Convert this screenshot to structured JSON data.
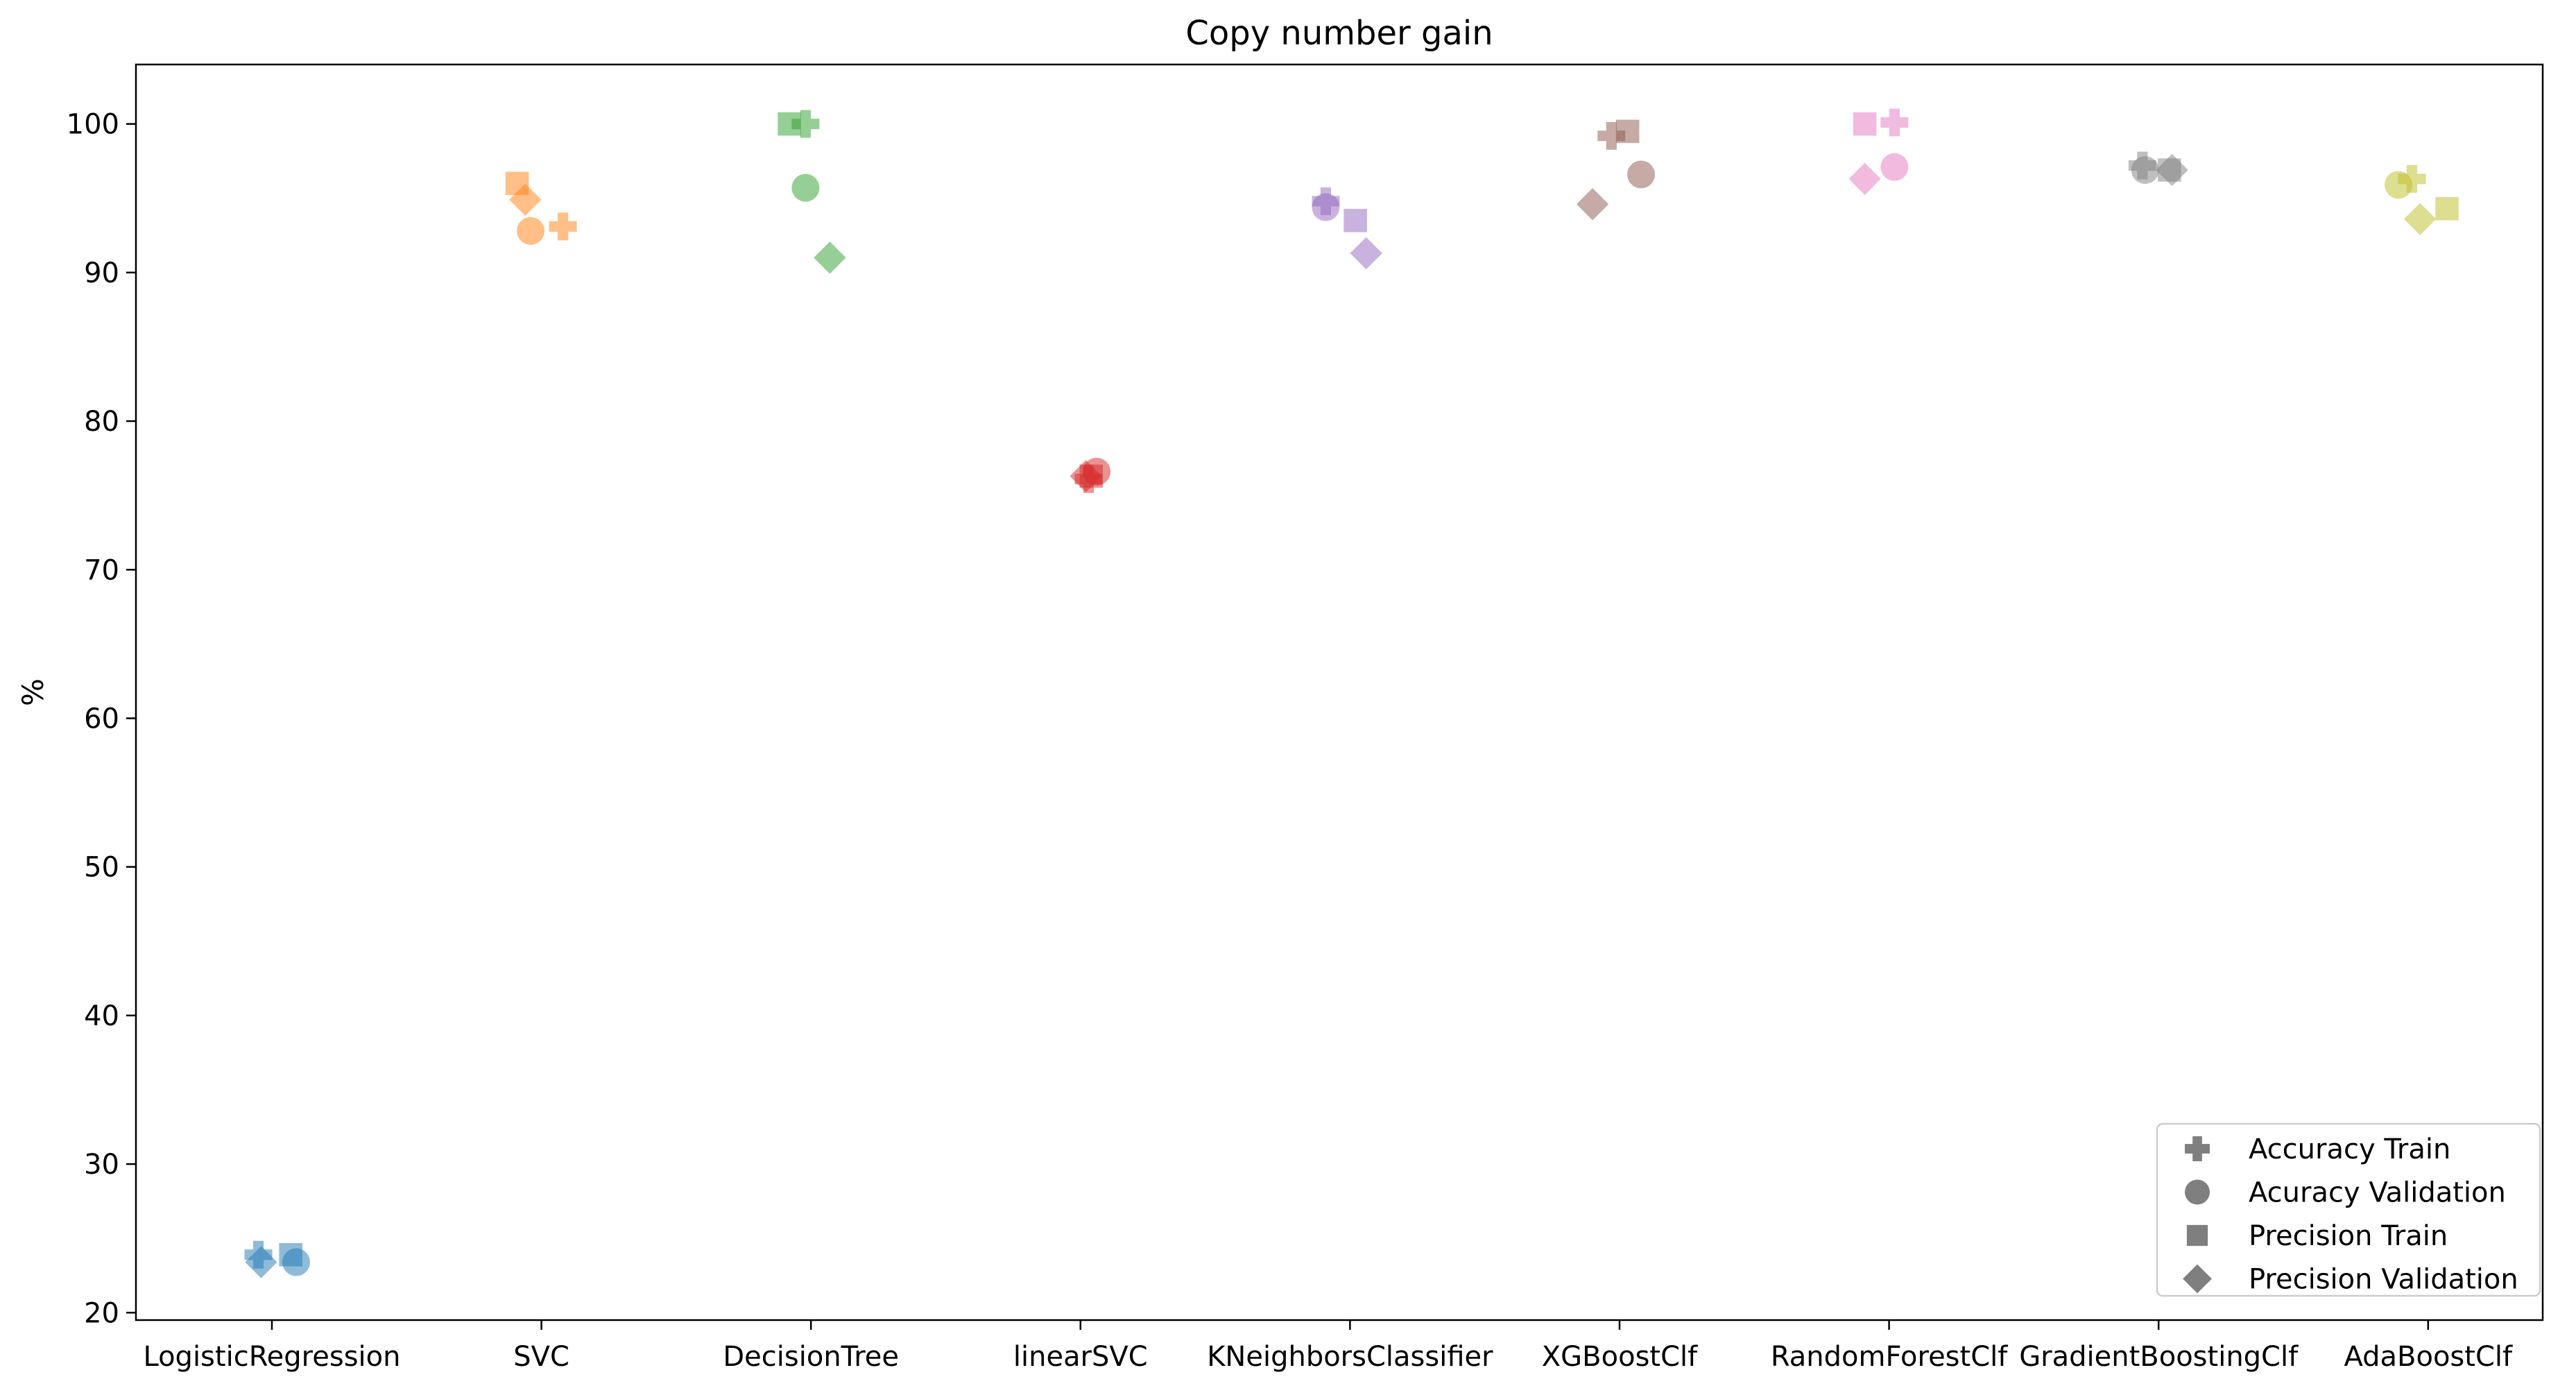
{
  "chart_data": {
    "type": "scatter",
    "title": "Copy number gain",
    "xlabel": "",
    "ylabel": "%",
    "ylim": [
      19.5,
      104
    ],
    "yticks": [
      20,
      30,
      40,
      50,
      60,
      70,
      80,
      90,
      100
    ],
    "categories": [
      "LogisticRegression",
      "SVC",
      "DecisionTree",
      "linearSVC",
      "KNeighborsClassifier",
      "XGBoostClf",
      "RandomForestClf",
      "GradientBoostingClf",
      "AdaBoostClf"
    ],
    "category_colors": [
      "#1f77b4",
      "#ff7f0e",
      "#2ca02c",
      "#d62728",
      "#9467bd",
      "#8c564b",
      "#e377c2",
      "#7f7f7f",
      "#bcbd22"
    ],
    "marker_opacity": 0.5,
    "legend_position": "lower-right",
    "grid": false,
    "series": [
      {
        "name": "Accuracy Train",
        "marker": "plus",
        "x_offset": [
          -0.05,
          0.08,
          -0.02,
          0.03,
          -0.09,
          -0.03,
          0.02,
          -0.06,
          -0.06
        ],
        "values": [
          23.9,
          93.1,
          100.0,
          76.1,
          94.8,
          99.2,
          100.1,
          97.2,
          96.3
        ]
      },
      {
        "name": "Acuracy Validation",
        "marker": "circle",
        "x_offset": [
          0.09,
          -0.04,
          -0.02,
          0.06,
          -0.09,
          0.08,
          0.02,
          -0.05,
          -0.11
        ],
        "values": [
          23.4,
          92.8,
          95.7,
          76.6,
          94.4,
          96.6,
          97.1,
          96.9,
          95.9
        ]
      },
      {
        "name": "Precision Train",
        "marker": "square",
        "x_offset": [
          0.07,
          -0.09,
          -0.08,
          0.04,
          0.02,
          0.03,
          -0.09,
          0.04,
          0.07
        ],
        "values": [
          23.9,
          96.0,
          100.0,
          76.3,
          93.5,
          99.5,
          100.0,
          96.9,
          94.3
        ]
      },
      {
        "name": "Precision Validation",
        "marker": "diamond",
        "x_offset": [
          -0.04,
          -0.06,
          0.07,
          0.02,
          0.06,
          -0.1,
          -0.09,
          0.05,
          -0.03
        ],
        "values": [
          23.4,
          94.9,
          91.0,
          76.3,
          91.3,
          94.6,
          96.3,
          96.9,
          93.6
        ]
      }
    ]
  }
}
